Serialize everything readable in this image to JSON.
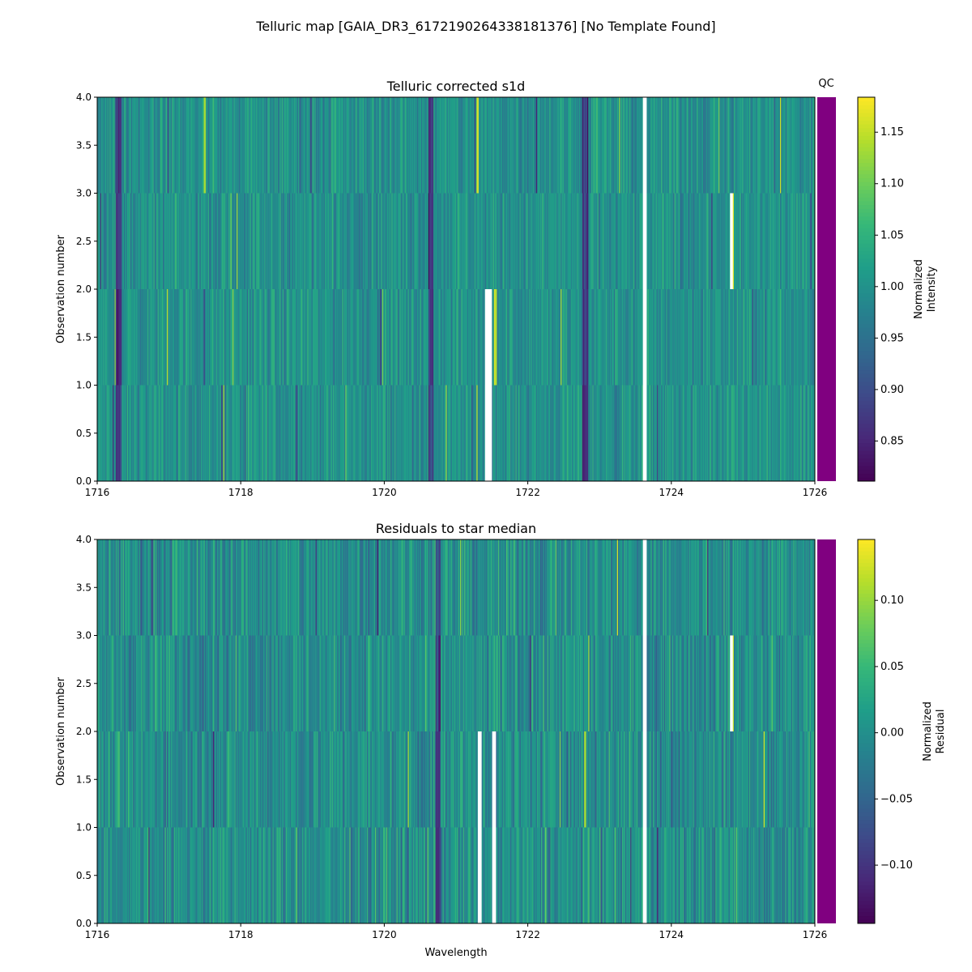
{
  "chart_data": {
    "type": "heatmap",
    "title": "Telluric map [GAIA_DR3_6172190264338181376] [No Template Found]",
    "qc_label": "QC",
    "qc_color": "#800080",
    "colormap": "viridis",
    "panels": [
      {
        "title": "Telluric corrected s1d",
        "xlabel": "",
        "ylabel": "Observation number",
        "xlim": [
          1716,
          1726
        ],
        "ylim": [
          0,
          4
        ],
        "xticks": [
          "1716",
          "1718",
          "1720",
          "1722",
          "1724",
          "1726"
        ],
        "yticks": [
          "0.0",
          "0.5",
          "1.0",
          "1.5",
          "2.0",
          "2.5",
          "3.0",
          "3.5",
          "4.0"
        ],
        "rows": 4,
        "colorbar": {
          "label": [
            "Normalized",
            "Intensity"
          ],
          "range": [
            0.811,
            1.184
          ],
          "ticks": [
            "0.85",
            "0.90",
            "0.95",
            "1.00",
            "1.05",
            "1.10",
            "1.15"
          ],
          "tick_values": [
            0.85,
            0.9,
            0.95,
            1.0,
            1.05,
            1.1,
            1.15
          ]
        },
        "center": 1.0,
        "spread": 0.035,
        "dark_features": [
          1716.3,
          1720.65,
          1722.8
        ],
        "bright_features": [
          [
            1721.3,
            3
          ],
          [
            1721.55,
            1
          ],
          [
            1717.5,
            3
          ],
          [
            1724.85,
            2
          ]
        ],
        "gaps": [
          [
            1723.6,
            1723.65,
            0,
            4
          ],
          [
            1721.4,
            1721.5,
            0,
            2
          ],
          [
            1724.82,
            1724.86,
            2,
            3
          ]
        ]
      },
      {
        "title": "Residuals to star median",
        "xlabel": "Wavelength",
        "ylabel": "Observation number",
        "xlim": [
          1716,
          1726
        ],
        "ylim": [
          0,
          4
        ],
        "xticks": [
          "1716",
          "1718",
          "1720",
          "1722",
          "1724",
          "1726"
        ],
        "yticks": [
          "0.0",
          "0.5",
          "1.0",
          "1.5",
          "2.0",
          "2.5",
          "3.0",
          "3.5",
          "4.0"
        ],
        "rows": 4,
        "colorbar": {
          "label": [
            "Normalized",
            "Residual"
          ],
          "range": [
            -0.144,
            0.146
          ],
          "ticks": [
            "−0.10",
            "−0.05",
            "0.00",
            "0.05",
            "0.10"
          ],
          "tick_values": [
            -0.1,
            -0.05,
            0.0,
            0.05,
            0.1
          ]
        },
        "center": 0.0,
        "spread": 0.035,
        "dark_features": [
          1720.75
        ],
        "bright_features": [
          [
            1722.8,
            1
          ],
          [
            1724.85,
            2
          ]
        ],
        "gaps": [
          [
            1723.6,
            1723.65,
            0,
            4
          ],
          [
            1721.3,
            1721.35,
            0,
            2
          ],
          [
            1721.5,
            1721.55,
            0,
            2
          ],
          [
            1724.82,
            1724.86,
            2,
            3
          ]
        ]
      }
    ]
  }
}
